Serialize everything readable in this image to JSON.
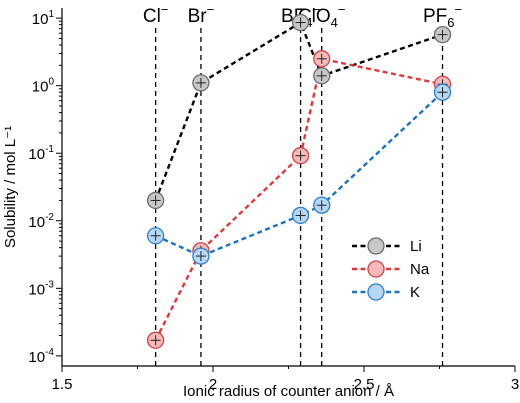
{
  "chart_data": {
    "type": "scatter",
    "xlabel": "Ionic radius of counter anion / Å",
    "ylabel": "Solubility / mol L⁻¹",
    "xlim": [
      1.5,
      3.0
    ],
    "ylim_log10": [
      -4.15,
      1.15
    ],
    "y_scale": "log",
    "x_ticks": [
      1.5,
      2,
      2.5,
      3
    ],
    "x_tick_labels": [
      "1.5",
      "2",
      "2.5",
      "3"
    ],
    "y_ticks": [
      -4,
      -3,
      -2,
      -1,
      0,
      1
    ],
    "y_tick_labels": [
      {
        "base": "10",
        "exp": "-4"
      },
      {
        "base": "10",
        "exp": "-3"
      },
      {
        "base": "10",
        "exp": "-2"
      },
      {
        "base": "10",
        "exp": "-1"
      },
      {
        "base": "10",
        "exp": "0"
      },
      {
        "base": "10",
        "exp": "1"
      }
    ],
    "anions": [
      {
        "x": 1.81,
        "main": "Cl",
        "sub": "",
        "sup": "−"
      },
      {
        "x": 1.96,
        "main": "Br",
        "sub": "",
        "sup": "−"
      },
      {
        "x": 2.29,
        "main": "BF",
        "sub": "4",
        "sup": "−"
      },
      {
        "x": 2.36,
        "main": "ClO",
        "sub": "4",
        "sup": "−"
      },
      {
        "x": 2.76,
        "main": "PF",
        "sub": "6",
        "sup": "−"
      }
    ],
    "legend_position": "right",
    "series": [
      {
        "name": "Li",
        "stroke": "#000000",
        "fill": "#c8c8c8",
        "edge": "#6a6a6a",
        "x": [
          1.81,
          1.96,
          2.29,
          2.36,
          2.76
        ],
        "y": [
          0.02,
          1.1,
          8.6,
          1.4,
          5.7
        ]
      },
      {
        "name": "Na",
        "stroke": "#e2383c",
        "fill": "#f7b9ba",
        "edge": "#d04448",
        "x": [
          1.81,
          1.96,
          2.29,
          2.36,
          2.76
        ],
        "y": [
          0.00017,
          0.0036,
          0.092,
          2.5,
          1.05
        ]
      },
      {
        "name": "K",
        "stroke": "#1a73c7",
        "fill": "#b7d8f4",
        "edge": "#2f7fd0",
        "x": [
          1.81,
          1.96,
          2.29,
          2.36,
          2.76
        ],
        "y": [
          0.006,
          0.003,
          0.012,
          0.017,
          0.8
        ]
      }
    ]
  }
}
